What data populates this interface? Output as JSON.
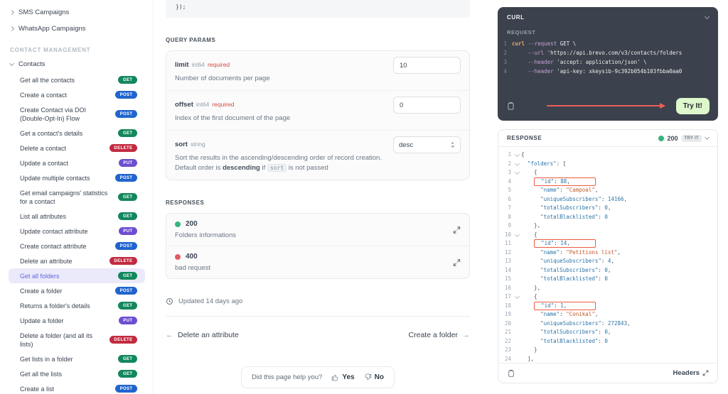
{
  "colors": {
    "method_get": "#12885c",
    "method_post": "#2065cf",
    "method_delete": "#c22b3f",
    "method_put": "#6c4fd0",
    "selected_bg": "#ebeafb",
    "selected_text": "#6366e0",
    "success_dot": "#35b57c",
    "error_dot": "#e15b64",
    "try_arrow": "#ed6055",
    "try_button_bg": "#def7cb",
    "annotation_box": "#ee5b40"
  },
  "sidebar": {
    "top_items": [
      {
        "label": "SMS Campaigns"
      },
      {
        "label": "WhatsApp Campaigns"
      }
    ],
    "section_label": "CONTACT MANAGEMENT",
    "group_label": "Contacts",
    "items": [
      {
        "label": "Get all the contacts",
        "method": "GET"
      },
      {
        "label": "Create a contact",
        "method": "POST"
      },
      {
        "label": "Create Contact via DOI (Double-Opt-In) Flow",
        "method": "POST"
      },
      {
        "label": "Get a contact's details",
        "method": "GET"
      },
      {
        "label": "Delete a contact",
        "method": "DELETE"
      },
      {
        "label": "Update a contact",
        "method": "PUT"
      },
      {
        "label": "Update multiple contacts",
        "method": "POST"
      },
      {
        "label": "Get email campaigns' statistics for a contact",
        "method": "GET"
      },
      {
        "label": "List all attributes",
        "method": "GET"
      },
      {
        "label": "Update contact attribute",
        "method": "PUT"
      },
      {
        "label": "Create contact attribute",
        "method": "POST"
      },
      {
        "label": "Delete an attribute",
        "method": "DELETE"
      },
      {
        "label": "Get all folders",
        "method": "GET",
        "selected": true
      },
      {
        "label": "Create a folder",
        "method": "POST"
      },
      {
        "label": "Returns a folder's details",
        "method": "GET"
      },
      {
        "label": "Update a folder",
        "method": "PUT"
      },
      {
        "label": "Delete a folder (and all its lists)",
        "method": "DELETE"
      },
      {
        "label": "Get lists in a folder",
        "method": "GET"
      },
      {
        "label": "Get all the lists",
        "method": "GET"
      },
      {
        "label": "Create a list",
        "method": "POST"
      }
    ]
  },
  "main": {
    "code_tail": "});",
    "query_params_label": "QUERY PARAMS",
    "params": [
      {
        "name": "limit",
        "type": "int64",
        "required": "required",
        "desc": "Number of documents per page",
        "control": "input",
        "value": "10"
      },
      {
        "name": "offset",
        "type": "int64",
        "required": "required",
        "desc": "Index of the first document of the page",
        "control": "input",
        "value": "0"
      },
      {
        "name": "sort",
        "type": "string",
        "required": "",
        "desc": "Sort the results in the ascending/descending order of record creation.",
        "desc2_prefix": "Default order is ",
        "desc2_bold": "descending",
        "desc2_mid": " if ",
        "desc2_code": "sort",
        "desc2_suffix": " is not passed",
        "control": "select",
        "value": "desc"
      }
    ],
    "responses_label": "RESPONSES",
    "responses": [
      {
        "code": "200",
        "desc": "Folders informations",
        "status": "success"
      },
      {
        "code": "400",
        "desc": "bad request",
        "status": "error"
      }
    ],
    "updated_text": "Updated 14 days ago",
    "prev_link": "Delete an attribute",
    "next_link": "Create a folder",
    "feedback": {
      "question": "Did this page help you?",
      "yes": "Yes",
      "no": "No"
    }
  },
  "request_panel": {
    "title": "CURL",
    "request_label": "REQUEST",
    "try_button": "Try It!",
    "lines": [
      {
        "num": "1",
        "t": [
          [
            "cmd",
            "curl "
          ],
          [
            "flag",
            "--request "
          ],
          [
            "pln",
            "GET \\"
          ]
        ]
      },
      {
        "num": "2",
        "t": [
          [
            "pln",
            "     "
          ],
          [
            "flag",
            "--url "
          ],
          [
            "str",
            "'https://api.brevo.com/v3/contacts/folders"
          ]
        ]
      },
      {
        "num": "3",
        "t": [
          [
            "pln",
            "     "
          ],
          [
            "flag",
            "--header "
          ],
          [
            "str",
            "'accept: application/json'"
          ],
          [
            "pln",
            " \\"
          ]
        ]
      },
      {
        "num": "4",
        "t": [
          [
            "pln",
            "     "
          ],
          [
            "flag",
            "--header "
          ],
          [
            "str",
            "'api-key: xkeysib-9c392b054b103fbba0aa0"
          ]
        ]
      }
    ]
  },
  "response_panel": {
    "title": "RESPONSE",
    "status_code": "200",
    "try_badge": "TRY IT",
    "headers_label": "Headers",
    "lines": [
      {
        "n": "1",
        "fold": true,
        "t": [
          [
            "pln",
            "{"
          ]
        ]
      },
      {
        "n": "2",
        "fold": true,
        "t": [
          [
            "pln",
            "  "
          ],
          [
            "key",
            "\"folders\""
          ],
          [
            "pln",
            ": ["
          ]
        ]
      },
      {
        "n": "3",
        "fold": true,
        "t": [
          [
            "pln",
            "    {"
          ]
        ]
      },
      {
        "n": "4",
        "pre": "    ",
        "box": [
          [
            "pln",
            "  "
          ],
          [
            "key",
            "\"id\""
          ],
          [
            "pln",
            ": "
          ],
          [
            "num",
            "88"
          ],
          [
            "pln",
            ","
          ]
        ]
      },
      {
        "n": "5",
        "t": [
          [
            "pln",
            "      "
          ],
          [
            "key",
            "\"name\""
          ],
          [
            "pln",
            ": "
          ],
          [
            "str",
            "\"Campoal\""
          ],
          [
            "pln",
            ","
          ]
        ]
      },
      {
        "n": "6",
        "t": [
          [
            "pln",
            "      "
          ],
          [
            "key",
            "\"uniqueSubscribers\""
          ],
          [
            "pln",
            ": "
          ],
          [
            "num",
            "14166"
          ],
          [
            "pln",
            ","
          ]
        ]
      },
      {
        "n": "7",
        "t": [
          [
            "pln",
            "      "
          ],
          [
            "key",
            "\"totalSubscribers\""
          ],
          [
            "pln",
            ": "
          ],
          [
            "num",
            "0"
          ],
          [
            "pln",
            ","
          ]
        ]
      },
      {
        "n": "8",
        "t": [
          [
            "pln",
            "      "
          ],
          [
            "key",
            "\"totalBlacklisted\""
          ],
          [
            "pln",
            ": "
          ],
          [
            "num",
            "0"
          ]
        ]
      },
      {
        "n": "9",
        "t": [
          [
            "pln",
            "    },"
          ]
        ]
      },
      {
        "n": "10",
        "fold": true,
        "t": [
          [
            "pln",
            "    {"
          ]
        ]
      },
      {
        "n": "11",
        "pre": "    ",
        "box": [
          [
            "pln",
            "  "
          ],
          [
            "key",
            "\"id\""
          ],
          [
            "pln",
            ": "
          ],
          [
            "num",
            "14"
          ],
          [
            "pln",
            ","
          ]
        ]
      },
      {
        "n": "12",
        "t": [
          [
            "pln",
            "      "
          ],
          [
            "key",
            "\"name\""
          ],
          [
            "pln",
            ": "
          ],
          [
            "str",
            "\"Petitions list\""
          ],
          [
            "pln",
            ","
          ]
        ]
      },
      {
        "n": "13",
        "t": [
          [
            "pln",
            "      "
          ],
          [
            "key",
            "\"uniqueSubscribers\""
          ],
          [
            "pln",
            ": "
          ],
          [
            "num",
            "4"
          ],
          [
            "pln",
            ","
          ]
        ]
      },
      {
        "n": "14",
        "t": [
          [
            "pln",
            "      "
          ],
          [
            "key",
            "\"totalSubscribers\""
          ],
          [
            "pln",
            ": "
          ],
          [
            "num",
            "0"
          ],
          [
            "pln",
            ","
          ]
        ]
      },
      {
        "n": "15",
        "t": [
          [
            "pln",
            "      "
          ],
          [
            "key",
            "\"totalBlacklisted\""
          ],
          [
            "pln",
            ": "
          ],
          [
            "num",
            "0"
          ]
        ]
      },
      {
        "n": "16",
        "t": [
          [
            "pln",
            "    },"
          ]
        ]
      },
      {
        "n": "17",
        "fold": true,
        "t": [
          [
            "pln",
            "    {"
          ]
        ]
      },
      {
        "n": "18",
        "pre": "    ",
        "box": [
          [
            "pln",
            "  "
          ],
          [
            "key",
            "\"id\""
          ],
          [
            "pln",
            ": "
          ],
          [
            "num",
            "1"
          ],
          [
            "pln",
            ","
          ]
        ]
      },
      {
        "n": "19",
        "t": [
          [
            "pln",
            "      "
          ],
          [
            "key",
            "\"name\""
          ],
          [
            "pln",
            ": "
          ],
          [
            "str",
            "\"Conikal\""
          ],
          [
            "pln",
            ","
          ]
        ]
      },
      {
        "n": "20",
        "t": [
          [
            "pln",
            "      "
          ],
          [
            "key",
            "\"uniqueSubscribers\""
          ],
          [
            "pln",
            ": "
          ],
          [
            "num",
            "272843"
          ],
          [
            "pln",
            ","
          ]
        ]
      },
      {
        "n": "21",
        "t": [
          [
            "pln",
            "      "
          ],
          [
            "key",
            "\"totalSubscribers\""
          ],
          [
            "pln",
            ": "
          ],
          [
            "num",
            "0"
          ],
          [
            "pln",
            ","
          ]
        ]
      },
      {
        "n": "22",
        "t": [
          [
            "pln",
            "      "
          ],
          [
            "key",
            "\"totalBlacklisted\""
          ],
          [
            "pln",
            ": "
          ],
          [
            "num",
            "0"
          ]
        ]
      },
      {
        "n": "23",
        "t": [
          [
            "pln",
            "    }"
          ]
        ]
      },
      {
        "n": "24",
        "t": [
          [
            "pln",
            "  ],"
          ]
        ]
      }
    ]
  }
}
